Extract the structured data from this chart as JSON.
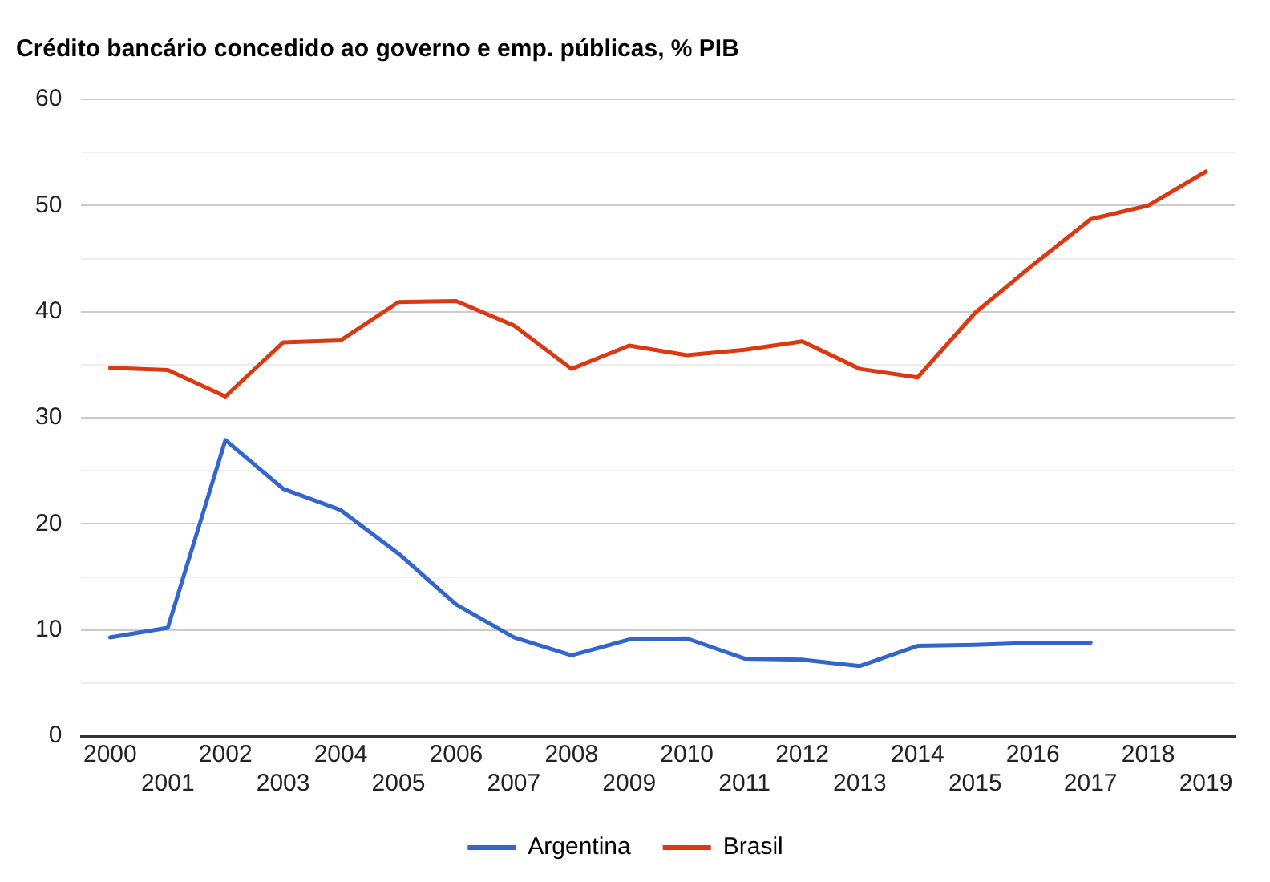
{
  "chart_data": {
    "type": "line",
    "title": "Crédito bancário concedido ao governo e emp. públicas, % PIB",
    "categories": [
      "2000",
      "2001",
      "2002",
      "2003",
      "2004",
      "2005",
      "2006",
      "2007",
      "2008",
      "2009",
      "2010",
      "2011",
      "2012",
      "2013",
      "2014",
      "2015",
      "2016",
      "2017",
      "2018",
      "2019"
    ],
    "series": [
      {
        "name": "Argentina",
        "color": "#3366cc",
        "values": [
          9.3,
          10.2,
          27.9,
          23.3,
          21.3,
          17.2,
          12.4,
          9.3,
          7.6,
          9.1,
          9.2,
          7.3,
          7.2,
          6.6,
          8.5,
          8.6,
          8.8,
          8.8,
          null,
          null
        ]
      },
      {
        "name": "Brasil",
        "color": "#dc3912",
        "values": [
          34.7,
          34.5,
          32.0,
          37.1,
          37.3,
          40.9,
          41.0,
          38.7,
          34.6,
          36.8,
          35.9,
          36.4,
          37.2,
          34.6,
          33.8,
          39.9,
          44.4,
          48.7,
          50.0,
          53.2
        ]
      }
    ],
    "ylim": [
      0,
      60
    ],
    "yticks": [
      0,
      {
        "value": 5,
        "label": null
      },
      10,
      {
        "value": 15,
        "label": null
      },
      20,
      {
        "value": 25,
        "label": null
      },
      30,
      {
        "value": 35,
        "label": null
      },
      40,
      {
        "value": 45,
        "label": null
      },
      50,
      {
        "value": 55,
        "label": null
      },
      60
    ],
    "grid": "y",
    "legend": "bottom",
    "marker": "none",
    "line_style": "solid"
  }
}
